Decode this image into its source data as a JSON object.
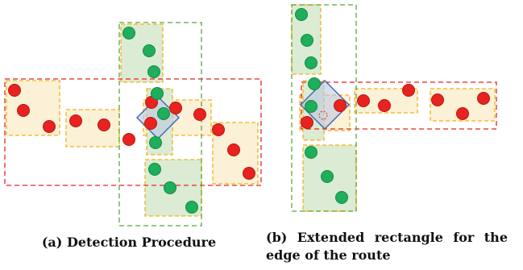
{
  "colors": {
    "red_dot": "#e8231f",
    "red_dot_stroke": "#b71612",
    "green_dot": "#1fae5b",
    "green_dot_stroke": "#148a45",
    "red_box_dash": "#e8231f",
    "green_box_dash": "#5aa63a",
    "segment_dash": "#f2b21b",
    "segment_fill": "#fbf1d6",
    "green_segment_fill": "#dcebd3",
    "diamond_stroke": "#3f63b5",
    "diamond_fill": "#b8c4e3"
  },
  "panels": [
    {
      "id": "a",
      "caption": "(a) Detection Procedure"
    },
    {
      "id": "b",
      "caption": "(b) Extended rectangle for the edge of the route"
    }
  ]
}
